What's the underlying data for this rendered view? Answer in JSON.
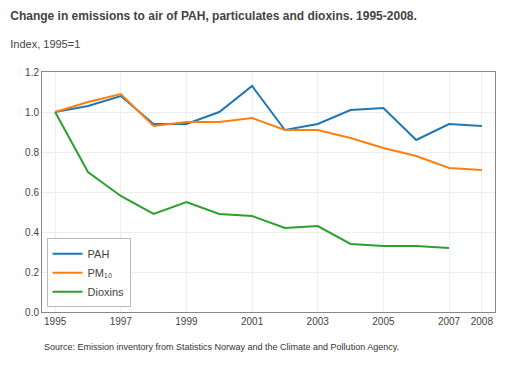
{
  "chart_data": {
    "type": "line",
    "title": "Change in emissions to air of PAH, particulates and dioxins. 1995-2008.",
    "subtitle": "Index, 1995=1",
    "annotations": [
      "Source: Emission inventory from Statistics Norway and the Climate and Pollution Agency."
    ],
    "x": [
      1995,
      1996,
      1997,
      1998,
      1999,
      2000,
      2001,
      2002,
      2003,
      2004,
      2005,
      2006,
      2007,
      2008
    ],
    "series": [
      {
        "name": "PAH",
        "values": [
          1.0,
          1.03,
          1.08,
          0.94,
          0.94,
          1.0,
          1.13,
          0.91,
          0.94,
          1.01,
          1.02,
          0.86,
          0.94,
          0.93
        ]
      },
      {
        "name": "PM₁₀",
        "values": [
          1.0,
          1.05,
          1.09,
          0.93,
          0.95,
          0.95,
          0.97,
          0.91,
          0.91,
          0.87,
          0.82,
          0.78,
          0.72,
          0.71
        ]
      },
      {
        "name": "Dioxins",
        "values": [
          1.0,
          0.7,
          0.58,
          0.49,
          0.55,
          0.49,
          0.48,
          0.42,
          0.43,
          0.34,
          0.33,
          0.33,
          0.32,
          null
        ]
      }
    ],
    "xlim": [
      1994.6,
      2008.4
    ],
    "xticks": [
      1995,
      1997,
      1999,
      2001,
      2003,
      2005,
      2007,
      2008
    ],
    "ylim": [
      0.0,
      1.2
    ],
    "yticks": [
      {
        "value": 0,
        "label": "0.0"
      },
      0.2,
      0.4,
      0.6,
      0.8,
      {
        "value": 1,
        "label": "1.0"
      },
      1.2
    ],
    "grid": true,
    "legend": "lower left"
  }
}
